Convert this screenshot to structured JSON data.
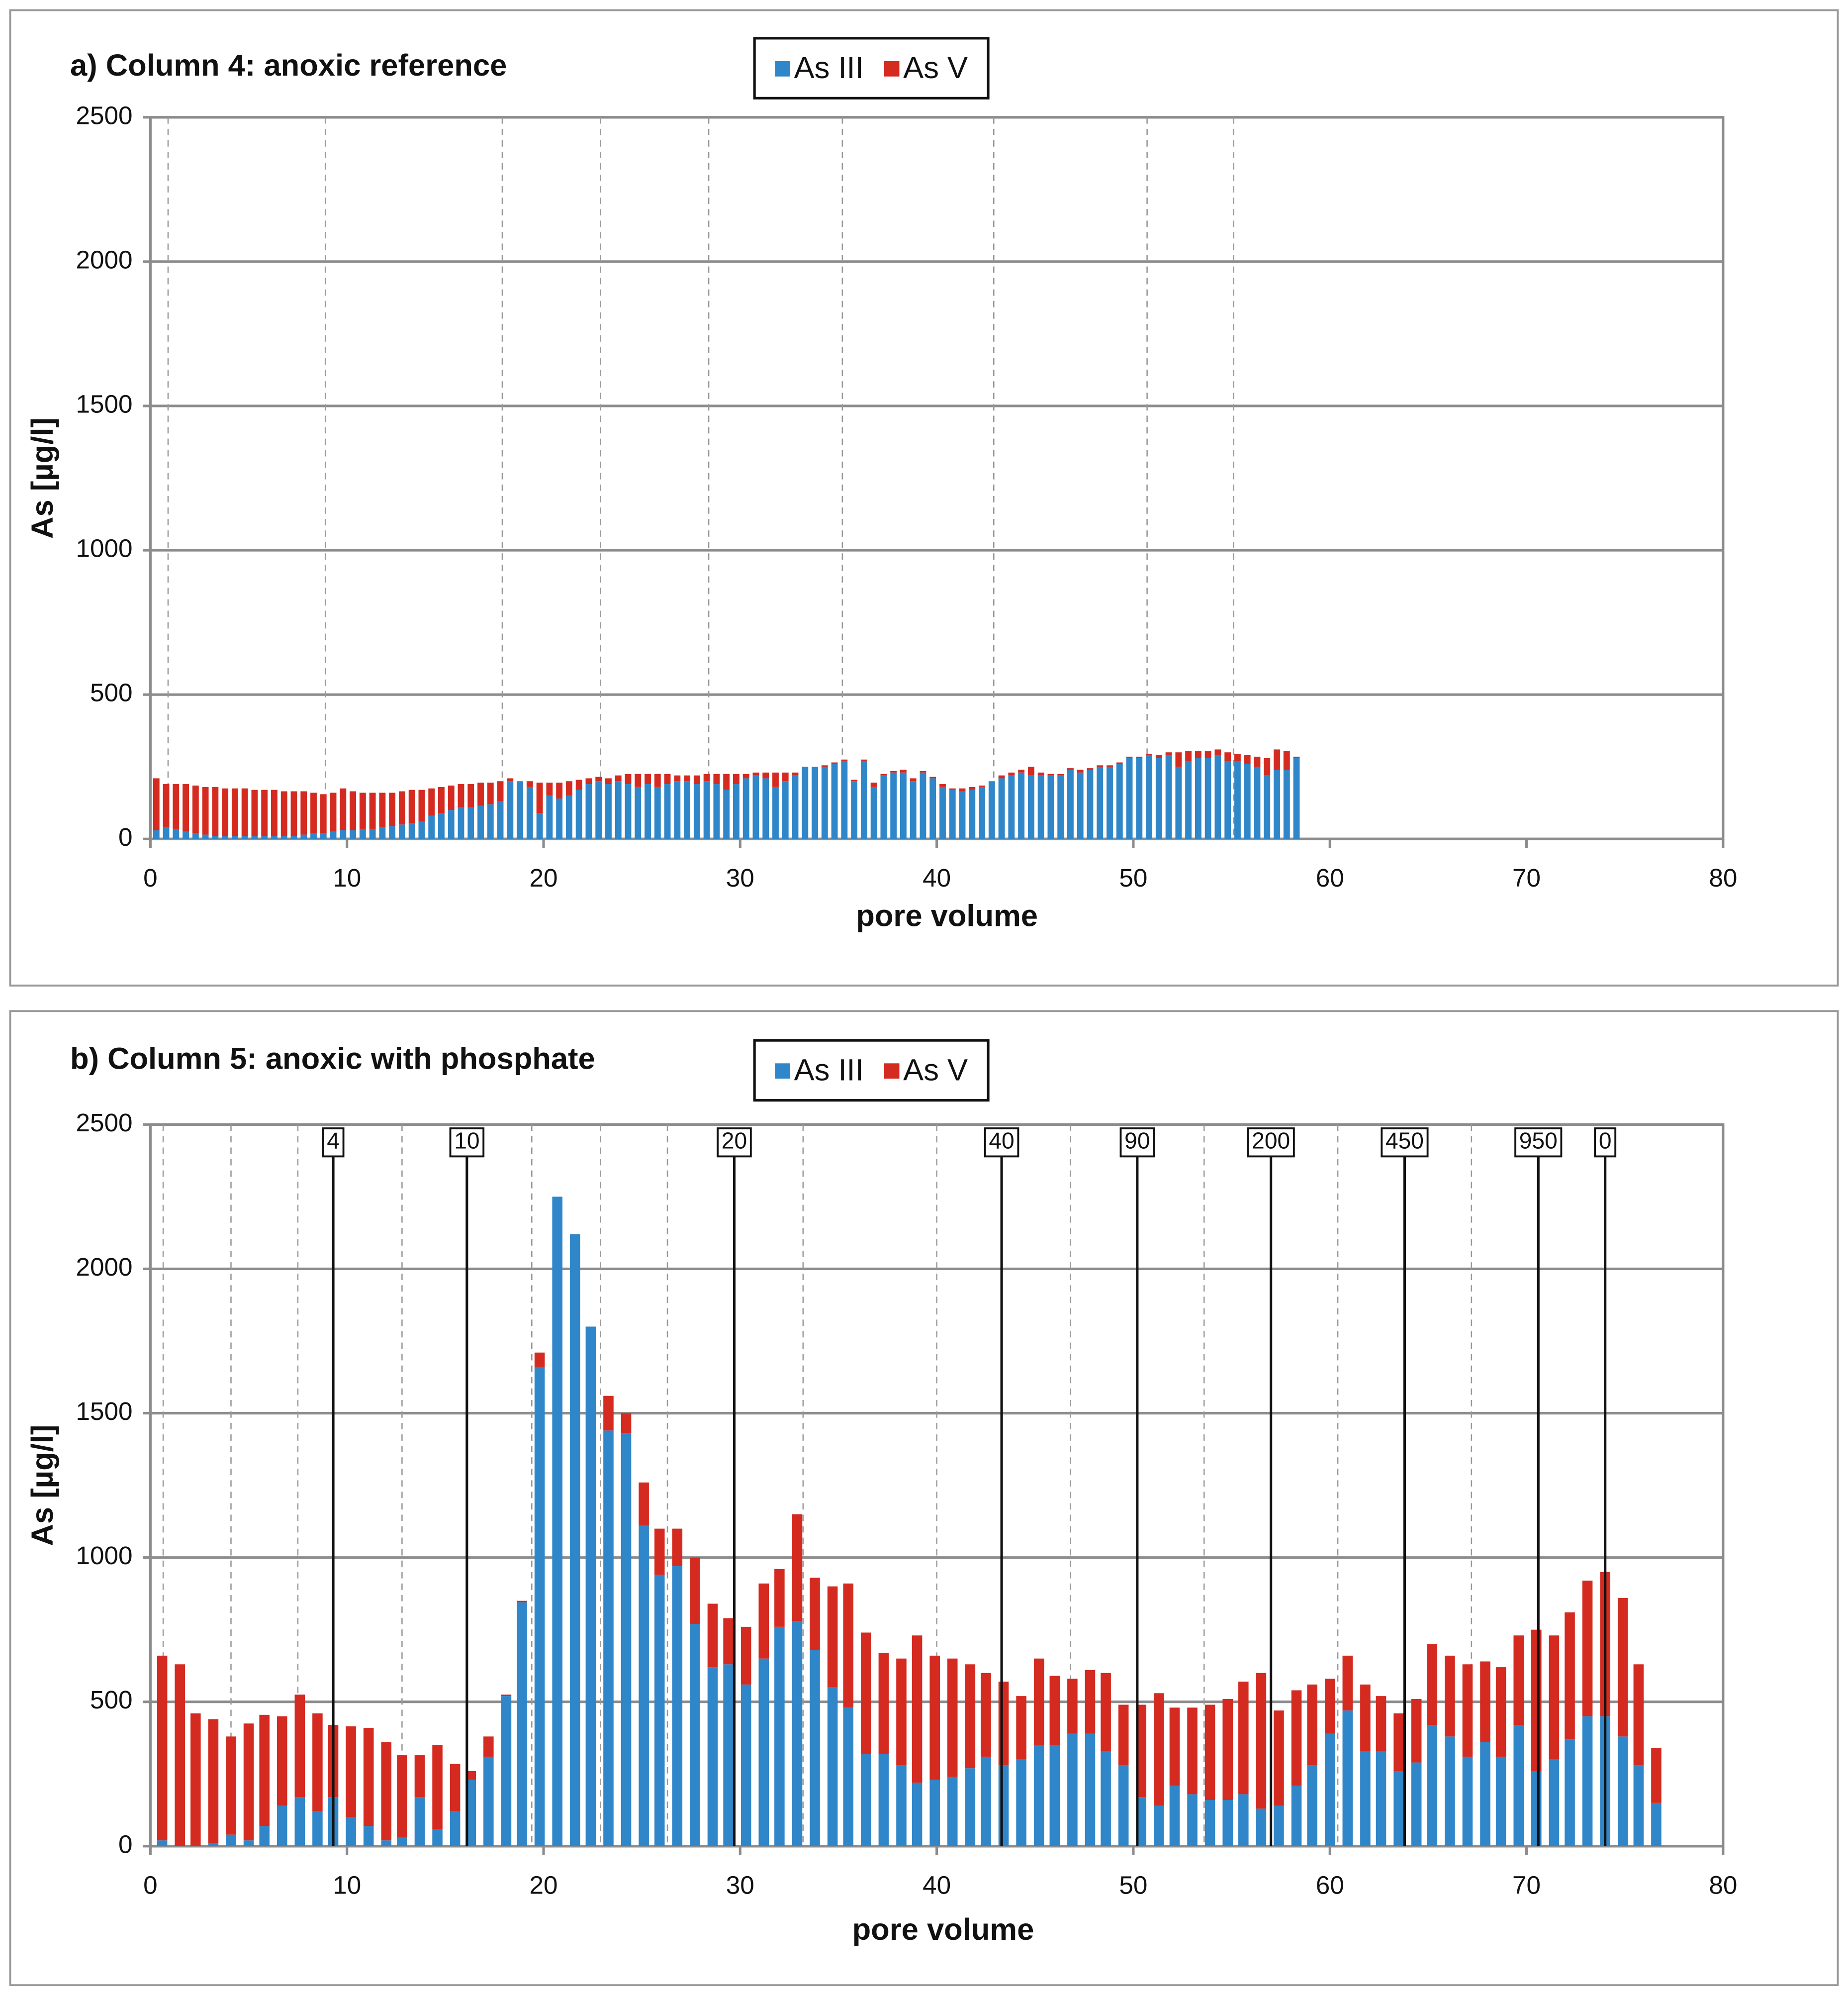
{
  "chart_data": [
    {
      "type": "bar",
      "title": "a) Column 4: anoxic reference",
      "xlabel": "pore volume",
      "ylabel": "As [µg/l]",
      "xlim": [
        0,
        80
      ],
      "xticks": [
        0,
        10,
        20,
        30,
        40,
        50,
        60,
        70,
        80
      ],
      "ylim": [
        0,
        2500
      ],
      "yticks": [
        0,
        500,
        1000,
        1500,
        2000,
        2500
      ],
      "grid": true,
      "legend": "top",
      "vlines": [
        0.9,
        8.9,
        17.9,
        22.9,
        28.4,
        35.2,
        42.9,
        50.7,
        55.1
      ],
      "x": [
        0.3,
        0.8,
        1.3,
        1.8,
        2.3,
        2.8,
        3.3,
        3.8,
        4.3,
        4.8,
        5.3,
        5.8,
        6.3,
        6.8,
        7.3,
        7.8,
        8.3,
        8.8,
        9.3,
        9.8,
        10.3,
        10.8,
        11.3,
        11.8,
        12.3,
        12.8,
        13.3,
        13.8,
        14.3,
        14.8,
        15.3,
        15.8,
        16.3,
        16.8,
        17.3,
        17.8,
        18.3,
        18.8,
        19.3,
        19.8,
        20.3,
        20.8,
        21.3,
        21.8,
        22.3,
        22.8,
        23.3,
        23.8,
        24.3,
        24.8,
        25.3,
        25.8,
        26.3,
        26.8,
        27.3,
        27.8,
        28.3,
        28.8,
        29.3,
        29.8,
        30.3,
        30.8,
        31.3,
        31.8,
        32.3,
        32.8,
        33.3,
        33.8,
        34.3,
        34.8,
        35.3,
        35.8,
        36.3,
        36.8,
        37.3,
        37.8,
        38.3,
        38.8,
        39.3,
        39.8,
        40.3,
        40.8,
        41.3,
        41.8,
        42.3,
        42.8,
        43.3,
        43.8,
        44.3,
        44.8,
        45.3,
        45.8,
        46.3,
        46.8,
        47.3,
        47.8,
        48.3,
        48.8,
        49.3,
        49.8,
        50.3,
        50.8,
        51.3,
        51.8,
        52.3,
        52.8,
        53.3,
        53.8,
        54.3,
        54.8,
        55.3,
        55.8,
        56.3,
        56.8,
        57.3,
        57.8,
        58.3
      ],
      "series": [
        {
          "name": "As III",
          "color": "#2f86c9",
          "values": [
            30,
            40,
            35,
            25,
            20,
            15,
            10,
            10,
            10,
            10,
            10,
            10,
            10,
            10,
            10,
            15,
            20,
            20,
            25,
            30,
            30,
            35,
            35,
            40,
            45,
            50,
            55,
            60,
            80,
            90,
            100,
            110,
            110,
            115,
            120,
            130,
            200,
            200,
            180,
            90,
            150,
            140,
            150,
            170,
            190,
            200,
            190,
            200,
            190,
            180,
            190,
            180,
            190,
            200,
            200,
            190,
            200,
            190,
            170,
            190,
            210,
            220,
            210,
            180,
            200,
            220,
            250,
            250,
            250,
            260,
            270,
            200,
            270,
            180,
            220,
            230,
            230,
            200,
            230,
            210,
            180,
            170,
            165,
            170,
            180,
            200,
            210,
            220,
            230,
            220,
            220,
            220,
            220,
            240,
            230,
            240,
            250,
            250,
            260,
            280,
            280,
            290,
            280,
            290,
            250,
            270,
            280,
            280,
            290,
            270,
            270,
            260,
            250,
            220,
            240,
            240,
            280
          ]
        },
        {
          "name": "As V",
          "color": "#d42a20",
          "values": [
            180,
            150,
            155,
            165,
            165,
            165,
            170,
            165,
            165,
            165,
            160,
            160,
            160,
            155,
            155,
            150,
            140,
            135,
            135,
            145,
            135,
            125,
            125,
            120,
            115,
            115,
            115,
            110,
            95,
            90,
            85,
            80,
            80,
            80,
            75,
            70,
            10,
            0,
            20,
            105,
            45,
            55,
            50,
            35,
            20,
            15,
            20,
            20,
            35,
            45,
            35,
            45,
            35,
            20,
            20,
            30,
            25,
            35,
            55,
            35,
            15,
            10,
            20,
            50,
            30,
            10,
            0,
            0,
            5,
            5,
            5,
            5,
            5,
            15,
            5,
            5,
            10,
            10,
            5,
            5,
            10,
            5,
            10,
            10,
            5,
            0,
            10,
            10,
            10,
            30,
            10,
            5,
            5,
            5,
            10,
            5,
            5,
            5,
            5,
            5,
            5,
            5,
            10,
            10,
            50,
            35,
            25,
            25,
            20,
            30,
            25,
            30,
            35,
            60,
            70,
            65,
            5
          ]
        }
      ]
    },
    {
      "type": "bar",
      "title": "b) Column 5: anoxic with phosphate",
      "xlabel": "pore volume",
      "ylabel": "As [µg/l]",
      "xlim": [
        0,
        80
      ],
      "xticks": [
        0,
        10,
        20,
        30,
        40,
        50,
        60,
        70,
        80
      ],
      "ylim": [
        0,
        2500
      ],
      "yticks": [
        0,
        500,
        1000,
        1500,
        2000,
        2500
      ],
      "grid": true,
      "legend": "top",
      "vlines": [
        0.65,
        4.1,
        7.5,
        12.8,
        19.4,
        22.9,
        26.3,
        33.2,
        40.0,
        46.8,
        53.6,
        60.4,
        67.2
      ],
      "annotations": [
        {
          "x": 9.3,
          "label": "4"
        },
        {
          "x": 16.1,
          "label": "10"
        },
        {
          "x": 29.7,
          "label": "20"
        },
        {
          "x": 43.3,
          "label": "40"
        },
        {
          "x": 50.2,
          "label": "90"
        },
        {
          "x": 57.0,
          "label": "200"
        },
        {
          "x": 63.8,
          "label": "450"
        },
        {
          "x": 70.6,
          "label": "950"
        },
        {
          "x": 74.0,
          "label": "0"
        }
      ],
      "x": [
        0.6,
        1.5,
        2.3,
        3.2,
        4.1,
        5.0,
        5.8,
        6.7,
        7.6,
        8.5,
        9.3,
        10.2,
        11.1,
        12.0,
        12.8,
        13.7,
        14.6,
        15.5,
        16.3,
        17.2,
        18.1,
        18.9,
        19.8,
        20.7,
        21.6,
        22.4,
        23.3,
        24.2,
        25.1,
        25.9,
        26.8,
        27.7,
        28.6,
        29.4,
        30.3,
        31.2,
        32.0,
        32.9,
        33.8,
        34.7,
        35.5,
        36.4,
        37.3,
        38.2,
        39.0,
        39.9,
        40.8,
        41.7,
        42.5,
        43.4,
        44.3,
        45.2,
        46.0,
        46.9,
        47.8,
        48.6,
        49.5,
        50.4,
        51.3,
        52.1,
        53.0,
        53.9,
        54.8,
        55.6,
        56.5,
        57.4,
        58.3,
        59.1,
        60.0,
        60.9,
        61.8,
        62.6,
        63.5,
        64.4,
        65.2,
        66.1,
        67.0,
        67.9,
        68.7,
        69.6,
        70.5,
        71.4,
        72.2,
        73.1,
        74.0,
        74.9,
        75.7,
        76.6
      ],
      "series": [
        {
          "name": "As III",
          "color": "#2f86c9",
          "values": [
            20,
            0,
            0,
            10,
            40,
            20,
            70,
            140,
            170,
            120,
            170,
            100,
            70,
            20,
            30,
            170,
            60,
            120,
            230,
            310,
            520,
            845,
            1660,
            2250,
            2120,
            1800,
            1440,
            1430,
            1110,
            940,
            970,
            770,
            620,
            630,
            560,
            650,
            760,
            780,
            680,
            550,
            480,
            320,
            320,
            280,
            220,
            230,
            240,
            270,
            310,
            280,
            300,
            350,
            350,
            390,
            390,
            330,
            280,
            170,
            140,
            210,
            180,
            160,
            160,
            180,
            130,
            140,
            210,
            280,
            390,
            470,
            330,
            330,
            260,
            290,
            420,
            380,
            310,
            360,
            310,
            420,
            260,
            300,
            370,
            450,
            450,
            380,
            280,
            150
          ]
        },
        {
          "name": "As V",
          "color": "#d42a20",
          "values": [
            640,
            630,
            460,
            430,
            340,
            405,
            385,
            310,
            355,
            340,
            250,
            315,
            340,
            340,
            285,
            145,
            290,
            165,
            30,
            70,
            5,
            5,
            50,
            0,
            0,
            0,
            120,
            70,
            150,
            160,
            130,
            230,
            220,
            160,
            200,
            260,
            200,
            370,
            250,
            350,
            430,
            420,
            350,
            370,
            510,
            430,
            410,
            360,
            290,
            290,
            220,
            300,
            240,
            190,
            220,
            270,
            210,
            320,
            390,
            270,
            300,
            330,
            350,
            390,
            470,
            330,
            330,
            280,
            190,
            190,
            230,
            190,
            200,
            220,
            280,
            280,
            320,
            280,
            310,
            310,
            490,
            430,
            440,
            470,
            500,
            480,
            350,
            190
          ]
        }
      ]
    }
  ]
}
